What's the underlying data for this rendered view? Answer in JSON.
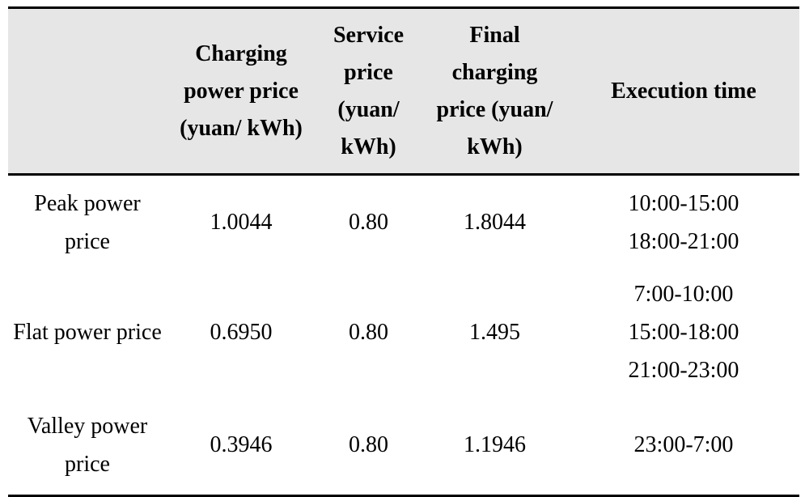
{
  "table": {
    "headers": [
      "",
      "Charging power price (yuan/ kWh)",
      "Service price (yuan/ kWh)",
      "Final charging price (yuan/ kWh)",
      "Execution time"
    ],
    "rows": [
      {
        "label": "Peak power price",
        "charging_power_price": "1.0044",
        "service_price": "0.80",
        "final_charging_price": "1.8044",
        "execution_time": [
          "10:00-15:00",
          "18:00-21:00"
        ]
      },
      {
        "label": "Flat power price",
        "charging_power_price": "0.6950",
        "service_price": "0.80",
        "final_charging_price": "1.495",
        "execution_time": [
          "7:00-10:00",
          "15:00-18:00",
          "21:00-23:00"
        ]
      },
      {
        "label": "Valley power price",
        "charging_power_price": "0.3946",
        "service_price": "0.80",
        "final_charging_price": "1.1946",
        "execution_time": [
          "23:00-7:00"
        ]
      }
    ]
  },
  "colors": {
    "header_background": "#e6e6e6",
    "rule": "#000000",
    "text": "#000000"
  }
}
